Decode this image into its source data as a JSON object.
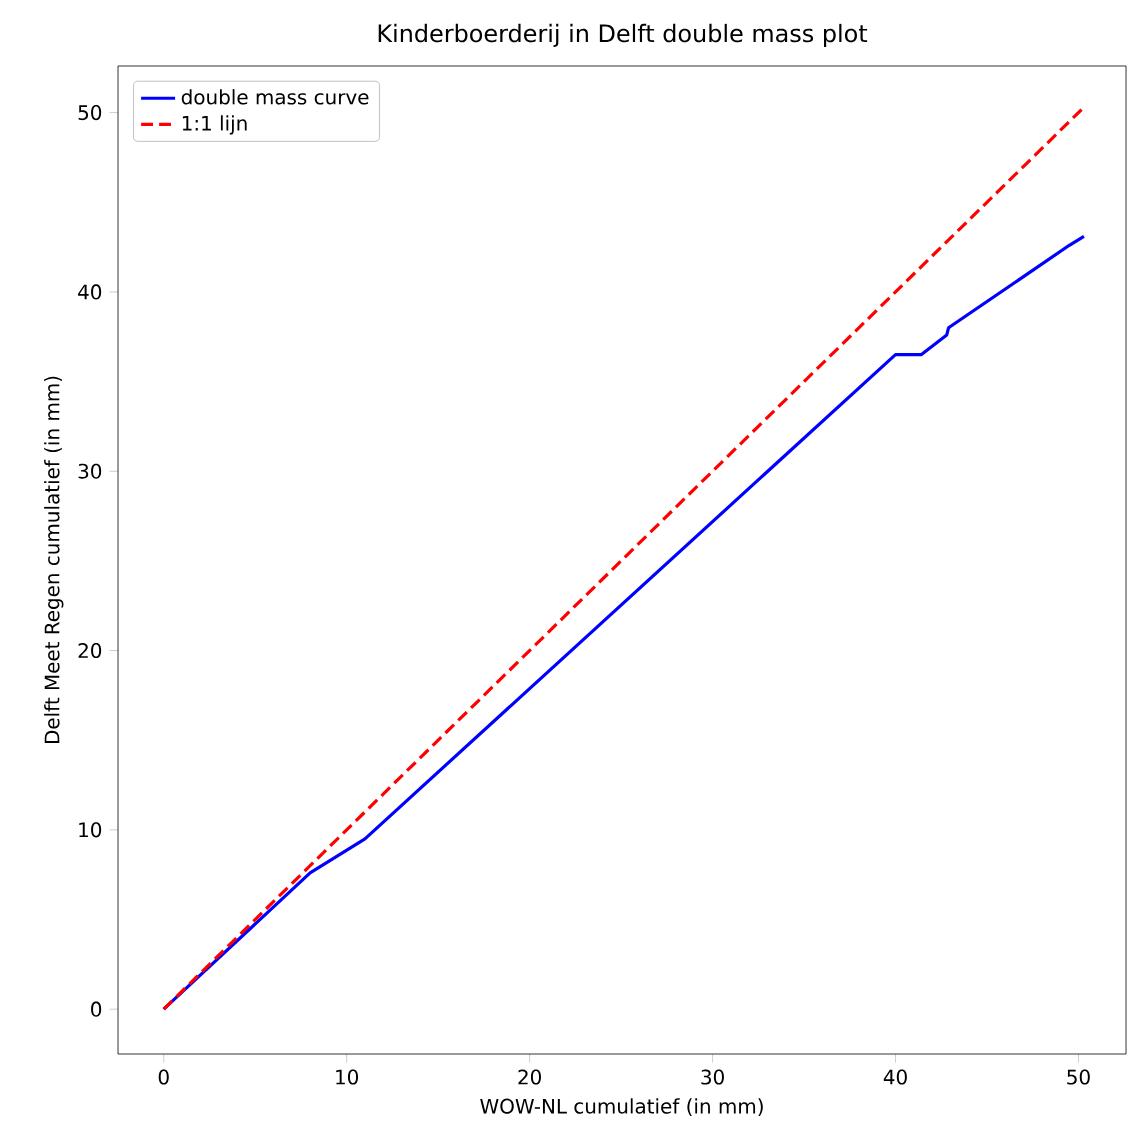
{
  "chart_data": {
    "type": "line",
    "title": "Kinderboerderij in Delft double mass plot",
    "xlabel": "WOW-NL cumulatief (in mm)",
    "ylabel": "Delft Meet Regen cumulatief (in mm)",
    "xlim": [
      -2.5,
      52.6
    ],
    "ylim": [
      -2.5,
      52.6
    ],
    "xticks": [
      0,
      10,
      20,
      30,
      40,
      50
    ],
    "yticks": [
      0,
      10,
      20,
      30,
      40,
      50
    ],
    "grid": false,
    "legend": "top left",
    "series": [
      {
        "name": "double mass curve",
        "color": "#0000ff",
        "line_style": "solid",
        "x": [
          0,
          4,
          8,
          11,
          40,
          41.4,
          42.8,
          42.9,
          49.5,
          50.3
        ],
        "values": [
          0,
          3.8,
          7.6,
          9.5,
          36.5,
          36.5,
          37.6,
          38,
          42.6,
          43.1
        ]
      },
      {
        "name": "1:1 lijn",
        "color": "#ff0000",
        "line_style": "dashed",
        "x": [
          0,
          50.3
        ],
        "values": [
          0,
          50.3
        ]
      }
    ]
  }
}
